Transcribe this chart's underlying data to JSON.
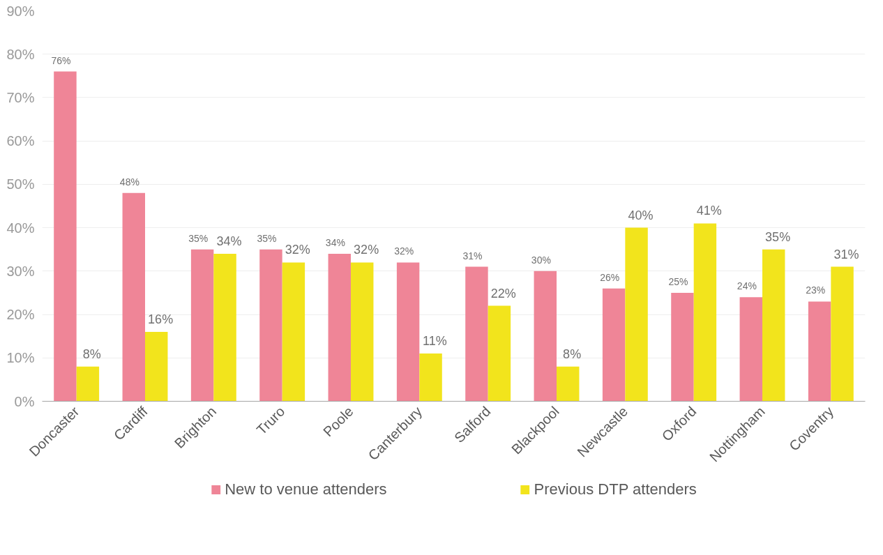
{
  "chart_data": {
    "type": "bar",
    "categories": [
      "Doncaster",
      "Cardiff",
      "Brighton",
      "Truro",
      "Poole",
      "Canterbury",
      "Salford",
      "Blackpool",
      "Newcastle",
      "Oxford",
      "Nottingham",
      "Coventry"
    ],
    "series": [
      {
        "name": "New to venue attenders",
        "color": "#ef8597",
        "values": [
          76,
          48,
          35,
          35,
          34,
          32,
          31,
          30,
          26,
          25,
          24,
          23
        ],
        "value_labels": [
          "76%",
          "48%",
          "35%",
          "35%",
          "34%",
          "32%",
          "31%",
          "30%",
          "26%",
          "25%",
          "24%",
          "23%"
        ]
      },
      {
        "name": "Previous DTP attenders",
        "color": "#f2e41c",
        "values": [
          8,
          16,
          34,
          32,
          32,
          11,
          22,
          8,
          40,
          41,
          35,
          31
        ],
        "value_labels": [
          "8%",
          "16%",
          "34%",
          "32%",
          "32%",
          "11%",
          "22%",
          "8%",
          "40%",
          "41%",
          "35%",
          "31%"
        ]
      }
    ],
    "ylim": [
      0,
      90
    ],
    "yticks": [
      {
        "value": 0,
        "label": "0%"
      },
      {
        "value": 10,
        "label": "10%"
      },
      {
        "value": 20,
        "label": "20%"
      },
      {
        "value": 30,
        "label": "30%"
      },
      {
        "value": 40,
        "label": "40%"
      },
      {
        "value": 50,
        "label": "50%"
      },
      {
        "value": 60,
        "label": "60%"
      },
      {
        "value": 70,
        "label": "70%"
      },
      {
        "value": 80,
        "label": "80%"
      },
      {
        "value": 90,
        "label": "90%"
      }
    ],
    "grid": "y",
    "legend": "bottom"
  }
}
